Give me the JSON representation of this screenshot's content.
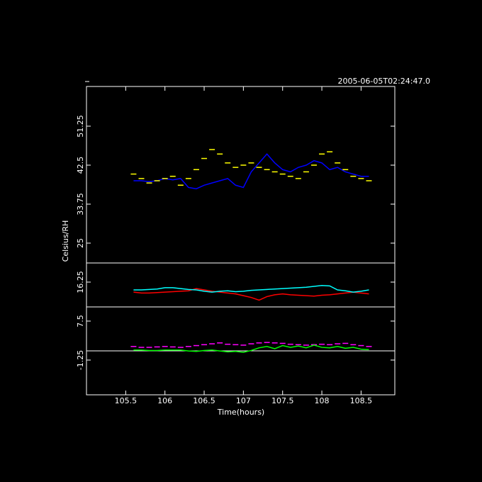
{
  "chart_data": {
    "type": "line",
    "timestamp": "2005-06-05T02:24:47.0",
    "xlabel": "Time(hours)",
    "ylabel": "Celsius/RH",
    "xlim": [
      105.0,
      108.93
    ],
    "ylim": [
      -9.05,
      60.16
    ],
    "xticks": [
      105.5,
      106,
      106.5,
      107,
      107.5,
      108,
      108.5
    ],
    "yticks": [
      -1.25,
      7.5,
      16.25,
      25,
      33.75,
      42.5,
      51.25
    ],
    "reference_lines": [
      20.55,
      10.68,
      0.82
    ],
    "x": [
      105.6,
      105.7,
      105.8,
      105.9,
      106.0,
      106.1,
      106.2,
      106.3,
      106.4,
      106.5,
      106.6,
      106.7,
      106.8,
      106.9,
      107.0,
      107.1,
      107.2,
      107.3,
      107.4,
      107.5,
      107.6,
      107.7,
      107.8,
      107.9,
      108.0,
      108.1,
      108.2,
      108.3,
      108.4,
      108.5,
      108.6
    ],
    "series": [
      {
        "color": "#0000ff",
        "marker": "line",
        "values": [
          39,
          39,
          38.8,
          39,
          39.5,
          39.2,
          39.5,
          37.5,
          37.2,
          38,
          38.5,
          39,
          39.5,
          38,
          37.5,
          41,
          43,
          45,
          43,
          41.5,
          41,
          42,
          42.5,
          43.5,
          43,
          41.5,
          42,
          41,
          40.5,
          40,
          40
        ]
      },
      {
        "color": "#ffff00",
        "marker": "dash",
        "values": [
          40.5,
          39.5,
          38.5,
          39,
          39.5,
          40,
          38,
          39.5,
          41.5,
          44,
          46,
          45,
          43,
          42,
          42.5,
          43,
          42,
          41.5,
          41,
          40.5,
          40,
          39.5,
          41,
          42.5,
          45,
          45.5,
          43,
          41.5,
          40,
          39.5,
          39
        ]
      },
      {
        "color": "#ff0000",
        "marker": "line",
        "values": [
          14,
          13.8,
          13.8,
          13.9,
          14,
          14.1,
          14.2,
          14.3,
          14.8,
          14.5,
          14.2,
          14,
          13.8,
          13.6,
          13.2,
          12.8,
          12.2,
          13,
          13.4,
          13.6,
          13.4,
          13.3,
          13.2,
          13.1,
          13.3,
          13.4,
          13.6,
          13.8,
          14,
          13.8,
          13.6
        ]
      },
      {
        "color": "#00ffff",
        "marker": "line",
        "values": [
          14.5,
          14.5,
          14.6,
          14.7,
          15,
          15,
          14.8,
          14.6,
          14.5,
          14.2,
          14,
          14.2,
          14.3,
          14.1,
          14.2,
          14.4,
          14.5,
          14.6,
          14.7,
          14.8,
          14.9,
          15,
          15.1,
          15.3,
          15.5,
          15.4,
          14.5,
          14.3,
          14,
          14.2,
          14.5
        ]
      },
      {
        "color": "#ff00ff",
        "marker": "dash",
        "values": [
          1.8,
          1.6,
          1.6,
          1.7,
          1.8,
          1.7,
          1.6,
          1.8,
          2,
          2.2,
          2.4,
          2.6,
          2.3,
          2.2,
          2.1,
          2.4,
          2.6,
          2.7,
          2.6,
          2.5,
          2.3,
          2.2,
          2.1,
          2.2,
          2.3,
          2.2,
          2.4,
          2.5,
          2.2,
          2,
          1.8
        ]
      },
      {
        "color": "#00ff00",
        "marker": "line",
        "values": [
          1,
          1,
          0.9,
          0.9,
          1,
          1,
          1,
          0.8,
          0.7,
          0.9,
          1,
          0.8,
          0.6,
          0.7,
          0.5,
          0.9,
          1.5,
          1.8,
          1.3,
          2,
          1.6,
          1.9,
          1.5,
          2.1,
          1.6,
          1.5,
          1.8,
          1.4,
          1.6,
          1.2,
          1.1
        ]
      }
    ]
  }
}
